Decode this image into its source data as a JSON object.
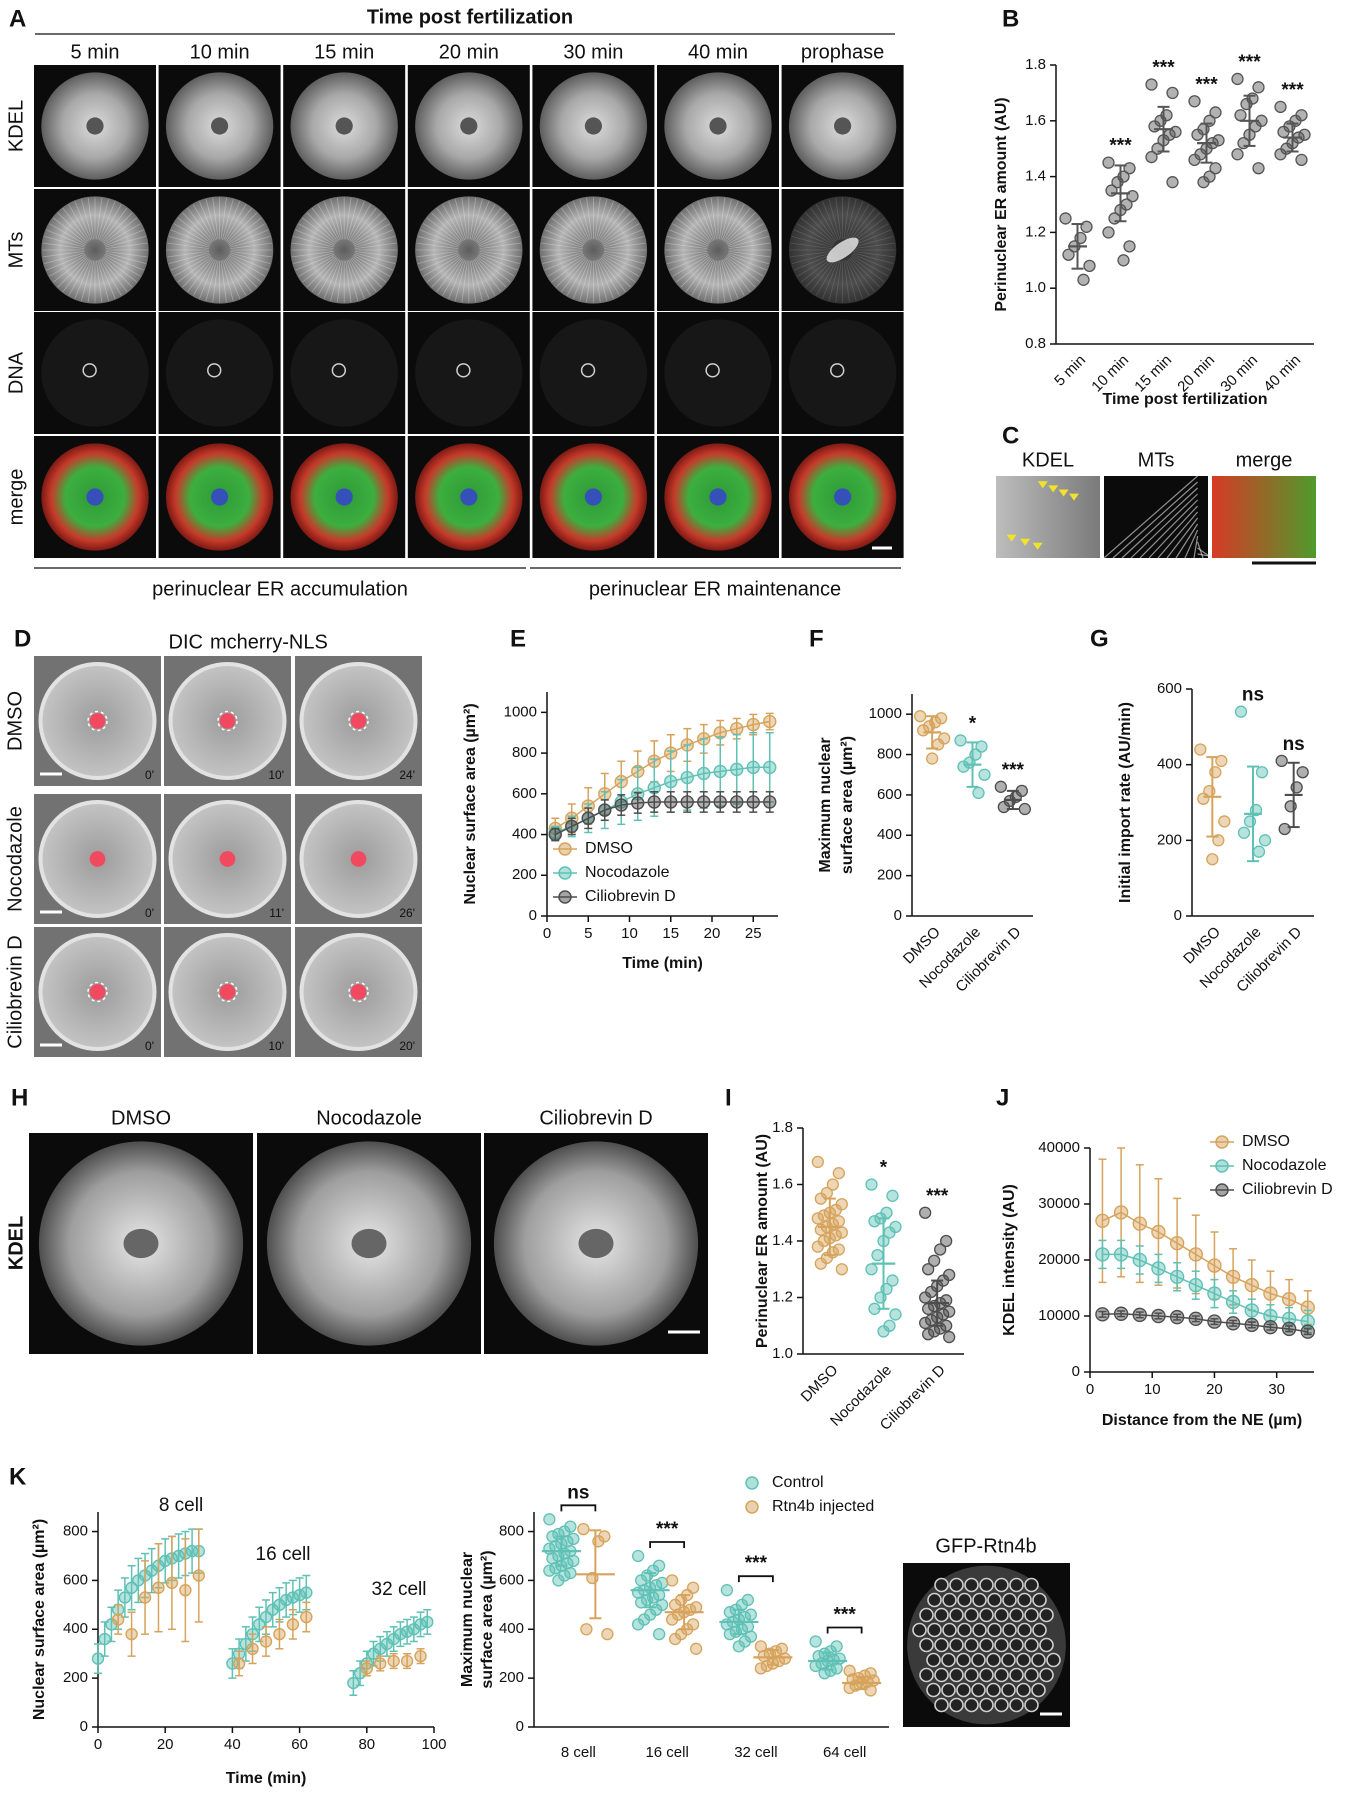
{
  "panel_labels": [
    "A",
    "B",
    "C",
    "D",
    "E",
    "F",
    "G",
    "H",
    "I",
    "J",
    "K"
  ],
  "figure_A": {
    "title": "Time post fertilization",
    "columns": [
      "5 min",
      "10 min",
      "15 min",
      "20 min",
      "30 min",
      "40 min",
      "prophase"
    ],
    "rows": [
      "KDEL",
      "MTs",
      "DNA",
      "merge"
    ],
    "phases": [
      "perinuclear ER accumulation",
      "perinuclear ER maintenance"
    ]
  },
  "figure_C": {
    "labels": [
      "KDEL",
      "MTs",
      "merge"
    ]
  },
  "figure_D": {
    "header": [
      "DIC",
      "mcherry-NLS"
    ],
    "rows": [
      "DMSO",
      "Nocodazole",
      "Ciliobrevin D"
    ],
    "times": [
      [
        "0'",
        "10'",
        "24'"
      ],
      [
        "0'",
        "11'",
        "26'"
      ],
      [
        "0'",
        "10'",
        "20'"
      ]
    ]
  },
  "figure_H": {
    "columns": [
      "DMSO",
      "Nocodazole",
      "Ciliobrevin D"
    ],
    "row": "KDEL"
  },
  "figure_K": {
    "image_label": "GFP-Rtn4b"
  },
  "chart_data": [
    {
      "type": "dot",
      "ylabel": "Perinuclear ER amount (AU)",
      "xlabel": "Time post fertilization",
      "categories": [
        "5 min",
        "10 min",
        "15 min",
        "20 min",
        "30 min",
        "40 min"
      ],
      "values": [
        [
          1.25,
          1.22,
          1.18,
          1.15,
          1.12,
          1.08,
          1.03
        ],
        [
          1.45,
          1.43,
          1.4,
          1.38,
          1.35,
          1.33,
          1.3,
          1.28,
          1.25,
          1.2,
          1.15,
          1.1
        ],
        [
          1.73,
          1.7,
          1.62,
          1.6,
          1.58,
          1.56,
          1.55,
          1.53,
          1.5,
          1.47,
          1.38
        ],
        [
          1.67,
          1.63,
          1.6,
          1.57,
          1.55,
          1.53,
          1.52,
          1.5,
          1.48,
          1.46,
          1.43,
          1.4,
          1.38
        ],
        [
          1.75,
          1.72,
          1.68,
          1.66,
          1.62,
          1.6,
          1.58,
          1.55,
          1.52,
          1.48,
          1.43
        ],
        [
          1.65,
          1.62,
          1.6,
          1.58,
          1.56,
          1.55,
          1.54,
          1.52,
          1.5,
          1.48,
          1.46
        ]
      ],
      "means": [
        1.15,
        1.34,
        1.57,
        1.52,
        1.6,
        1.54
      ],
      "sds": [
        0.08,
        0.1,
        0.08,
        0.07,
        0.09,
        0.05
      ],
      "annotations": [
        null,
        "***",
        "***",
        "***",
        "***",
        "***"
      ],
      "color": "#555555",
      "ylim": [
        0.8,
        1.8
      ],
      "yticks": [
        0.8,
        {
          "value": 1,
          "label": "1.0"
        },
        1.2,
        1.4,
        1.6,
        1.8
      ]
    },
    {
      "type": "line",
      "xlabel": "Time (min)",
      "ylabel": "Nuclear surface area (µm²)",
      "x": [
        1,
        3,
        5,
        7,
        9,
        11,
        13,
        15,
        17,
        19,
        21,
        23,
        25,
        27
      ],
      "series": [
        {
          "name": "DMSO",
          "color": "#d6a35c",
          "values": [
            430,
            480,
            540,
            600,
            660,
            710,
            760,
            800,
            840,
            870,
            900,
            920,
            940,
            955
          ],
          "errors": [
            50,
            70,
            90,
            100,
            100,
            100,
            100,
            90,
            80,
            70,
            60,
            50,
            50,
            40
          ]
        },
        {
          "name": "Nocodazole",
          "color": "#5fc1b5",
          "values": [
            410,
            440,
            480,
            520,
            560,
            600,
            630,
            660,
            680,
            700,
            710,
            720,
            730,
            730
          ],
          "errors": [
            30,
            50,
            70,
            90,
            110,
            130,
            140,
            150,
            160,
            170,
            170,
            170,
            170,
            170
          ]
        },
        {
          "name": "Ciliobrevin D",
          "color": "#4d4d4d",
          "values": [
            400,
            440,
            480,
            520,
            545,
            555,
            560,
            560,
            560,
            560,
            560,
            560,
            560,
            560
          ],
          "errors": [
            30,
            40,
            50,
            50,
            50,
            50,
            50,
            50,
            50,
            50,
            50,
            50,
            50,
            50
          ]
        }
      ],
      "xlim": [
        0,
        28
      ],
      "xticks": [
        0,
        5,
        10,
        15,
        20,
        25
      ],
      "ylim": [
        0,
        1100
      ],
      "yticks": [
        0,
        200,
        400,
        600,
        800,
        1000
      ],
      "legend": "lower center"
    },
    {
      "type": "dot",
      "ylabel": [
        "Maximum nuclear",
        "surface area (µm²)"
      ],
      "categories": [
        "DMSO",
        "Nocodazole",
        "Ciliobrevin D"
      ],
      "values": [
        [
          990,
          980,
          960,
          940,
          920,
          880,
          850,
          780
        ],
        [
          870,
          840,
          800,
          760,
          740,
          700,
          610
        ],
        [
          640,
          620,
          590,
          570,
          540,
          530
        ]
      ],
      "means": [
        910,
        750,
        575
      ],
      "sds": [
        80,
        110,
        45
      ],
      "annotations": [
        null,
        "*",
        "***"
      ],
      "colors": [
        "#d6a35c",
        "#5fc1b5",
        "#4d4d4d"
      ],
      "ylim": [
        0,
        1100
      ],
      "yticks": [
        0,
        200,
        400,
        600,
        800,
        1000
      ]
    },
    {
      "type": "dot",
      "ylabel": "Initial import rate (AU/min)",
      "categories": [
        "DMSO",
        "Nocodazole",
        "Ciliobrevin D"
      ],
      "values": [
        [
          440,
          410,
          380,
          330,
          310,
          250,
          200,
          150
        ],
        [
          540,
          380,
          280,
          250,
          220,
          200,
          170
        ],
        [
          410,
          380,
          340,
          290,
          230
        ]
      ],
      "means": [
        315,
        270,
        320
      ],
      "sds": [
        105,
        125,
        85
      ],
      "annotations": [
        null,
        "ns",
        "ns"
      ],
      "colors": [
        "#d6a35c",
        "#5fc1b5",
        "#4d4d4d"
      ],
      "ylim": [
        0,
        600
      ],
      "yticks": [
        0,
        200,
        400,
        600
      ]
    },
    {
      "type": "dot",
      "ylabel": "Perinuclear ER amount (AU)",
      "categories": [
        "DMSO",
        "Nocodazole",
        "Ciliobrevin D"
      ],
      "values": [
        [
          1.68,
          1.64,
          1.6,
          1.57,
          1.55,
          1.53,
          1.51,
          1.5,
          1.49,
          1.48,
          1.47,
          1.46,
          1.45,
          1.44,
          1.43,
          1.42,
          1.41,
          1.4,
          1.38,
          1.37,
          1.36,
          1.34,
          1.32,
          1.3
        ],
        [
          1.6,
          1.56,
          1.5,
          1.48,
          1.47,
          1.45,
          1.43,
          1.4,
          1.35,
          1.3,
          1.26,
          1.23,
          1.2,
          1.16,
          1.14,
          1.1,
          1.08
        ],
        [
          1.5,
          1.4,
          1.37,
          1.33,
          1.3,
          1.28,
          1.26,
          1.24,
          1.22,
          1.2,
          1.19,
          1.18,
          1.17,
          1.16,
          1.15,
          1.14,
          1.13,
          1.12,
          1.11,
          1.1,
          1.09,
          1.08,
          1.07,
          1.06
        ]
      ],
      "means": [
        1.45,
        1.32,
        1.18
      ],
      "sds": [
        0.1,
        0.16,
        0.08
      ],
      "annotations": [
        null,
        "*",
        "***"
      ],
      "colors": [
        "#d6a35c",
        "#5fc1b5",
        "#4d4d4d"
      ],
      "ylim": [
        1,
        1.8
      ],
      "yticks": [
        {
          "value": 1,
          "label": "1.0"
        },
        1.2,
        1.4,
        1.6,
        1.8
      ]
    },
    {
      "type": "line",
      "xlabel": "Distance from the NE (µm)",
      "ylabel": "KDEL intensity (AU)",
      "x": [
        2,
        5,
        8,
        11,
        14,
        17,
        20,
        23,
        26,
        29,
        32,
        35
      ],
      "series": [
        {
          "name": "DMSO",
          "color": "#d6a35c",
          "values": [
            27000,
            28500,
            26500,
            25000,
            23000,
            21000,
            19000,
            17000,
            15500,
            14000,
            13000,
            11500
          ],
          "errors": [
            11000,
            11500,
            10500,
            9500,
            8000,
            7000,
            6000,
            5000,
            4500,
            4000,
            3500,
            3000
          ]
        },
        {
          "name": "Nocodazole",
          "color": "#5fc1b5",
          "values": [
            21000,
            21000,
            20000,
            18500,
            17000,
            15500,
            14000,
            12500,
            11000,
            10000,
            9500,
            9000
          ],
          "errors": [
            2500,
            2500,
            2500,
            2500,
            2500,
            2500,
            2500,
            2000,
            2000,
            2000,
            2000,
            2000
          ]
        },
        {
          "name": "Ciliobrevin D",
          "color": "#4d4d4d",
          "values": [
            10300,
            10400,
            10200,
            10000,
            9800,
            9500,
            9000,
            8700,
            8400,
            8000,
            7700,
            7200
          ],
          "errors": [
            500,
            500,
            500,
            500,
            500,
            500,
            500,
            500,
            500,
            500,
            500,
            500
          ]
        }
      ],
      "xlim": [
        0,
        36
      ],
      "xticks": [
        0,
        10,
        20,
        30
      ],
      "ylim": [
        0,
        40000
      ],
      "yticks": [
        0,
        10000,
        20000,
        30000,
        40000
      ],
      "legend": "upper right"
    },
    {
      "type": "line",
      "xlabel": "Time (min)",
      "ylabel": "Nuclear surface area (µm²)",
      "annotations": [
        "8 cell",
        "16 cell",
        "32 cell"
      ],
      "x": [
        0,
        2,
        4,
        6,
        8,
        10,
        12,
        14,
        16,
        18,
        20,
        22,
        24,
        26,
        28,
        30,
        40,
        42,
        44,
        46,
        48,
        50,
        52,
        54,
        56,
        58,
        60,
        62,
        76,
        78,
        80,
        82,
        84,
        86,
        88,
        90,
        92,
        94,
        96,
        98
      ],
      "series": [
        {
          "color": "#5fc1b5",
          "values": [
            280,
            360,
            420,
            480,
            530,
            570,
            600,
            620,
            640,
            660,
            680,
            690,
            700,
            710,
            720,
            720,
            260,
            300,
            340,
            380,
            420,
            450,
            480,
            500,
            520,
            530,
            540,
            550,
            180,
            220,
            260,
            300,
            320,
            340,
            360,
            380,
            390,
            400,
            420,
            430
          ],
          "errors": [
            60,
            70,
            70,
            80,
            80,
            90,
            90,
            90,
            90,
            90,
            90,
            90,
            90,
            90,
            90,
            90,
            60,
            60,
            70,
            70,
            70,
            70,
            70,
            70,
            70,
            70,
            70,
            70,
            50,
            50,
            50,
            50,
            50,
            50,
            50,
            50,
            50,
            50,
            50,
            50
          ]
        },
        {
          "color": "#d6a35c",
          "values": [
            null,
            null,
            null,
            440,
            null,
            380,
            null,
            530,
            null,
            570,
            null,
            590,
            null,
            560,
            null,
            620,
            null,
            260,
            null,
            320,
            null,
            350,
            null,
            380,
            null,
            420,
            null,
            450,
            null,
            null,
            240,
            null,
            260,
            null,
            270,
            null,
            270,
            null,
            290,
            null
          ],
          "errors": [
            null,
            null,
            null,
            60,
            null,
            90,
            null,
            150,
            null,
            180,
            null,
            190,
            null,
            210,
            null,
            190,
            null,
            50,
            null,
            60,
            null,
            60,
            null,
            60,
            null,
            60,
            null,
            60,
            null,
            null,
            30,
            null,
            30,
            null,
            30,
            null,
            30,
            null,
            30,
            null
          ]
        }
      ],
      "xlim": [
        0,
        100
      ],
      "xticks": [
        0,
        20,
        40,
        60,
        80,
        100
      ],
      "ylim": [
        0,
        880
      ],
      "yticks": [
        0,
        200,
        400,
        600,
        800
      ]
    },
    {
      "type": "dot",
      "ylabel": [
        "Maximum nuclear",
        "surface area (µm²)"
      ],
      "categories": [
        "8 cell",
        "16 cell",
        "32 cell",
        "64 cell"
      ],
      "series": [
        {
          "name": "Control",
          "color": "#5fc1b5",
          "values": [
            [
              850,
              820,
              800,
              790,
              780,
              770,
              760,
              750,
              740,
              730,
              720,
              710,
              700,
              690,
              680,
              670,
              660,
              650,
              640,
              630,
              620,
              600
            ],
            [
              700,
              660,
              640,
              620,
              600,
              590,
              580,
              570,
              560,
              550,
              540,
              530,
              520,
              510,
              500,
              480,
              460,
              440,
              420,
              380
            ],
            [
              560,
              520,
              500,
              480,
              470,
              460,
              450,
              440,
              430,
              420,
              410,
              400,
              390,
              380,
              370,
              350,
              330
            ],
            [
              350,
              330,
              310,
              300,
              290,
              280,
              275,
              270,
              260,
              250,
              240,
              230,
              220
            ]
          ],
          "means": [
            720,
            560,
            430,
            270
          ],
          "sds": [
            60,
            70,
            50,
            35
          ]
        },
        {
          "name": "Rtn4b injected",
          "color": "#d6a35c",
          "values": [
            [
              810,
              780,
              760,
              610,
              400,
              380
            ],
            [
              600,
              570,
              540,
              520,
              500,
              490,
              480,
              470,
              460,
              440,
              420,
              400,
              380,
              360,
              320
            ],
            [
              330,
              320,
              310,
              300,
              290,
              280,
              270,
              260,
              250,
              240
            ],
            [
              230,
              220,
              210,
              200,
              195,
              190,
              185,
              180,
              170,
              160,
              150
            ]
          ],
          "means": [
            625,
            470,
            285,
            180
          ],
          "sds": [
            180,
            70,
            30,
            25
          ]
        }
      ],
      "annotations": [
        "ns",
        "***",
        "***",
        "***"
      ],
      "ylim": [
        0,
        880
      ],
      "yticks": [
        0,
        200,
        400,
        600,
        800
      ],
      "legend": "upper right"
    }
  ]
}
